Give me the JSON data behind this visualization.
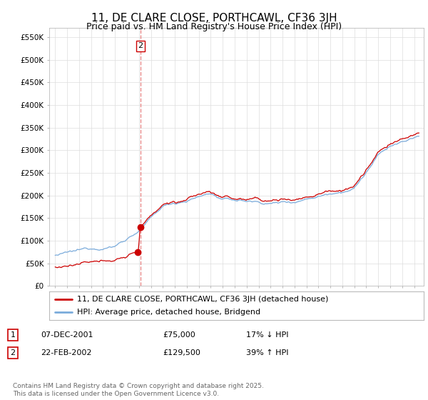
{
  "title": "11, DE CLARE CLOSE, PORTHCAWL, CF36 3JH",
  "subtitle": "Price paid vs. HM Land Registry's House Price Index (HPI)",
  "ylim": [
    0,
    570000
  ],
  "yticks": [
    0,
    50000,
    100000,
    150000,
    200000,
    250000,
    300000,
    350000,
    400000,
    450000,
    500000,
    550000
  ],
  "ytick_labels": [
    "£0",
    "£50K",
    "£100K",
    "£150K",
    "£200K",
    "£250K",
    "£300K",
    "£350K",
    "£400K",
    "£450K",
    "£500K",
    "£550K"
  ],
  "legend_line1": "11, DE CLARE CLOSE, PORTHCAWL, CF36 3JH (detached house)",
  "legend_line2": "HPI: Average price, detached house, Bridgend",
  "transaction1_label": "1",
  "transaction1_date": "07-DEC-2001",
  "transaction1_price": "£75,000",
  "transaction1_change": "17% ↓ HPI",
  "transaction2_label": "2",
  "transaction2_date": "22-FEB-2002",
  "transaction2_price": "£129,500",
  "transaction2_change": "39% ↑ HPI",
  "footer": "Contains HM Land Registry data © Crown copyright and database right 2025.\nThis data is licensed under the Open Government Licence v3.0.",
  "red_color": "#cc0000",
  "blue_color": "#7aabdb",
  "vline_color": "#e88080",
  "background_color": "#ffffff",
  "grid_color": "#dddddd",
  "title_fontsize": 11,
  "subtitle_fontsize": 9,
  "transaction1_x": 2001.92,
  "transaction1_y": 75000,
  "transaction2_x": 2002.14,
  "transaction2_y": 129500,
  "vline_x": 2002.14,
  "xlim_left": 1994.5,
  "xlim_right": 2025.8
}
